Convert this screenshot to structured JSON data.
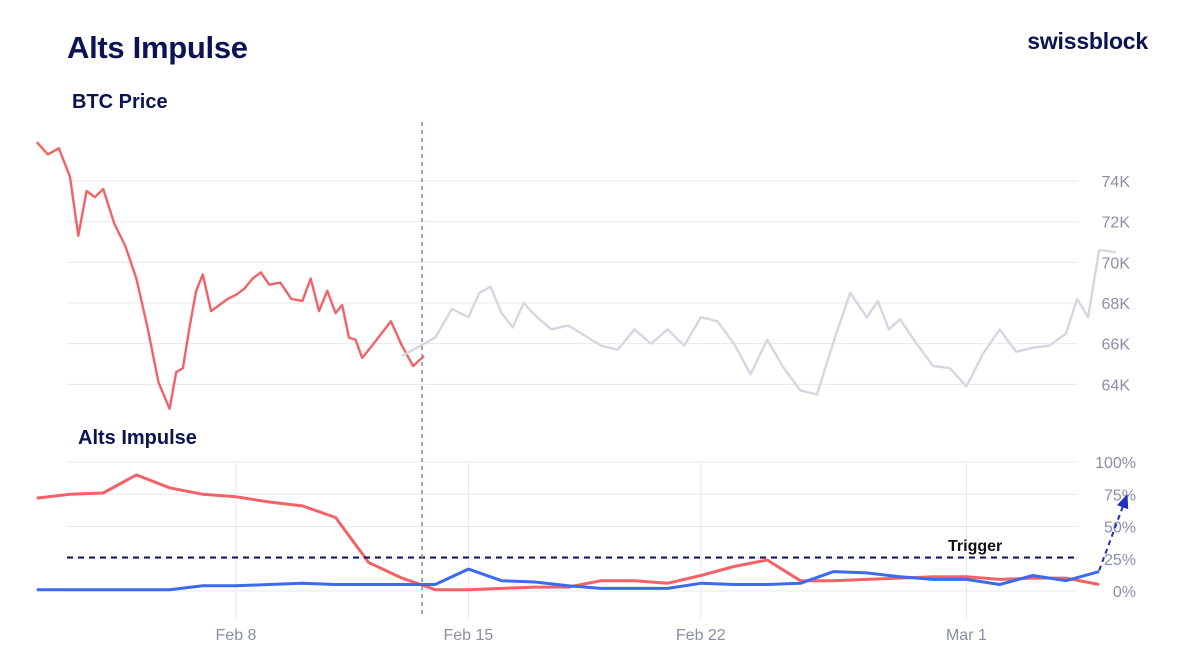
{
  "header": {
    "title": "Alts Impulse",
    "brand": "swissblock"
  },
  "colors": {
    "navy": "#0b1354",
    "red": "#f26266",
    "blue": "#3c6af0",
    "gray_line": "#d6d6e2",
    "grid": "#e8e8ef",
    "tick": "#8a8fa8"
  },
  "chart_data": [
    {
      "type": "line",
      "title": "BTC Price",
      "y_axis_side": "right",
      "ylim": [
        62200,
        76500
      ],
      "yticks": [
        "74K",
        "72K",
        "70K",
        "68K",
        "66K",
        "64K"
      ],
      "ytick_values": [
        74000,
        72000,
        70000,
        68000,
        66000,
        64000
      ],
      "grid": true,
      "highlight_until": "2024-02-13",
      "series": [
        {
          "color": "#f26266",
          "x": [
            "2024-02-02",
            "2024-02-02",
            "2024-02-02",
            "2024-02-03",
            "2024-02-03",
            "2024-02-03",
            "2024-02-03",
            "2024-02-04",
            "2024-02-04",
            "2024-02-04",
            "2024-02-05",
            "2024-02-05",
            "2024-02-05",
            "2024-02-06",
            "2024-02-06",
            "2024-02-06",
            "2024-02-06",
            "2024-02-06",
            "2024-02-07",
            "2024-02-07",
            "2024-02-07",
            "2024-02-07",
            "2024-02-08",
            "2024-02-08",
            "2024-02-08",
            "2024-02-08",
            "2024-02-09",
            "2024-02-09",
            "2024-02-09",
            "2024-02-10",
            "2024-02-10",
            "2024-02-10",
            "2024-02-10",
            "2024-02-11",
            "2024-02-11",
            "2024-02-11",
            "2024-02-11",
            "2024-02-11",
            "2024-02-12",
            "2024-02-12",
            "2024-02-12",
            "2024-02-13",
            "2024-02-13",
            "2024-02-13"
          ],
          "values": [
            75900,
            75300,
            75600,
            74200,
            71300,
            73500,
            73200,
            73600,
            71900,
            70800,
            69200,
            66800,
            64100,
            62800,
            64600,
            64800,
            66800,
            68600,
            69400,
            67600,
            67900,
            68200,
            68400,
            68700,
            69200,
            69500,
            68900,
            69000,
            68200,
            68100,
            69200,
            67600,
            68600,
            67500,
            67900,
            66300,
            66200,
            65300,
            65700,
            66400,
            67100,
            65900,
            64900,
            65400
          ]
        },
        {
          "color": "#d6d6e2",
          "x": [
            "2024-02-13",
            "2024-02-14",
            "2024-02-14",
            "2024-02-15",
            "2024-02-15",
            "2024-02-15",
            "2024-02-16",
            "2024-02-16",
            "2024-02-16",
            "2024-02-17",
            "2024-02-17",
            "2024-02-18",
            "2024-02-18",
            "2024-02-19",
            "2024-02-19",
            "2024-02-20",
            "2024-02-20",
            "2024-02-21",
            "2024-02-21",
            "2024-02-22",
            "2024-02-22",
            "2024-02-23",
            "2024-02-23",
            "2024-02-24",
            "2024-02-24",
            "2024-02-25",
            "2024-02-25",
            "2024-02-26",
            "2024-02-26",
            "2024-02-27",
            "2024-02-27",
            "2024-02-27",
            "2024-02-28",
            "2024-02-28",
            "2024-02-29",
            "2024-02-29",
            "2024-03-01",
            "2024-03-01",
            "2024-03-02",
            "2024-03-02",
            "2024-03-03",
            "2024-03-03",
            "2024-03-04",
            "2024-03-04",
            "2024-03-04",
            "2024-03-05",
            "2024-03-05"
          ],
          "values": [
            65400,
            66300,
            67700,
            67300,
            68500,
            68800,
            67500,
            66800,
            68000,
            67400,
            66700,
            66900,
            66400,
            65900,
            65700,
            66700,
            66000,
            66700,
            65900,
            67300,
            67100,
            66000,
            64500,
            66200,
            64800,
            63700,
            63500,
            66100,
            68500,
            67300,
            68100,
            66700,
            67200,
            66000,
            64900,
            64800,
            63900,
            65500,
            66700,
            65600,
            65800,
            65900,
            66500,
            68200,
            67300,
            70600,
            70500
          ]
        }
      ]
    },
    {
      "type": "line",
      "title": "Alts Impulse",
      "y_axis_side": "right",
      "ylim": [
        0,
        100
      ],
      "yticks": [
        "100%",
        "75%",
        "50%",
        "25%",
        "0%"
      ],
      "ytick_values": [
        100,
        75,
        50,
        25,
        0
      ],
      "grid": true,
      "x_ticks": [
        "Feb 8",
        "Feb 15",
        "Feb 22",
        "Mar 1"
      ],
      "x_tick_dates": [
        "2024-02-08",
        "2024-02-15",
        "2024-02-22",
        "2024-03-01"
      ],
      "vline_date": "2024-02-13",
      "trigger": {
        "label": "Trigger",
        "value": 26
      },
      "projection": {
        "color": "#1f2fc4",
        "from": [
          "2024-03-05",
          16
        ],
        "to": [
          "2024-03-06",
          73
        ]
      },
      "series": [
        {
          "color": "#f26266",
          "x": [
            "2024-02-02",
            "2024-02-03",
            "2024-02-04",
            "2024-02-05",
            "2024-02-06",
            "2024-02-07",
            "2024-02-08",
            "2024-02-09",
            "2024-02-10",
            "2024-02-11",
            "2024-02-12",
            "2024-02-13",
            "2024-02-14",
            "2024-02-15",
            "2024-02-16",
            "2024-02-17",
            "2024-02-18",
            "2024-02-19",
            "2024-02-20",
            "2024-02-21",
            "2024-02-22",
            "2024-02-23",
            "2024-02-24",
            "2024-02-25",
            "2024-02-26",
            "2024-02-27",
            "2024-02-28",
            "2024-02-29",
            "2024-03-01",
            "2024-03-02",
            "2024-03-03",
            "2024-03-04",
            "2024-03-05"
          ],
          "values": [
            72,
            75,
            76,
            90,
            80,
            75,
            73,
            69,
            66,
            57,
            22,
            10,
            1,
            1,
            2,
            3,
            3,
            8,
            8,
            6,
            12,
            19,
            24,
            8,
            8,
            9,
            10,
            11,
            11,
            9,
            10,
            10,
            5
          ]
        },
        {
          "color": "#3c6af0",
          "x": [
            "2024-02-02",
            "2024-02-03",
            "2024-02-04",
            "2024-02-05",
            "2024-02-06",
            "2024-02-07",
            "2024-02-08",
            "2024-02-09",
            "2024-02-10",
            "2024-02-11",
            "2024-02-12",
            "2024-02-13",
            "2024-02-14",
            "2024-02-15",
            "2024-02-16",
            "2024-02-17",
            "2024-02-18",
            "2024-02-19",
            "2024-02-20",
            "2024-02-21",
            "2024-02-22",
            "2024-02-23",
            "2024-02-24",
            "2024-02-25",
            "2024-02-26",
            "2024-02-27",
            "2024-02-28",
            "2024-02-29",
            "2024-03-01",
            "2024-03-02",
            "2024-03-03",
            "2024-03-04",
            "2024-03-05"
          ],
          "values": [
            1,
            1,
            1,
            1,
            1,
            4,
            4,
            5,
            6,
            5,
            5,
            5,
            5,
            17,
            8,
            7,
            4,
            2,
            2,
            2,
            6,
            5,
            5,
            6,
            15,
            14,
            11,
            9,
            9,
            5,
            12,
            8,
            15
          ]
        }
      ]
    }
  ]
}
